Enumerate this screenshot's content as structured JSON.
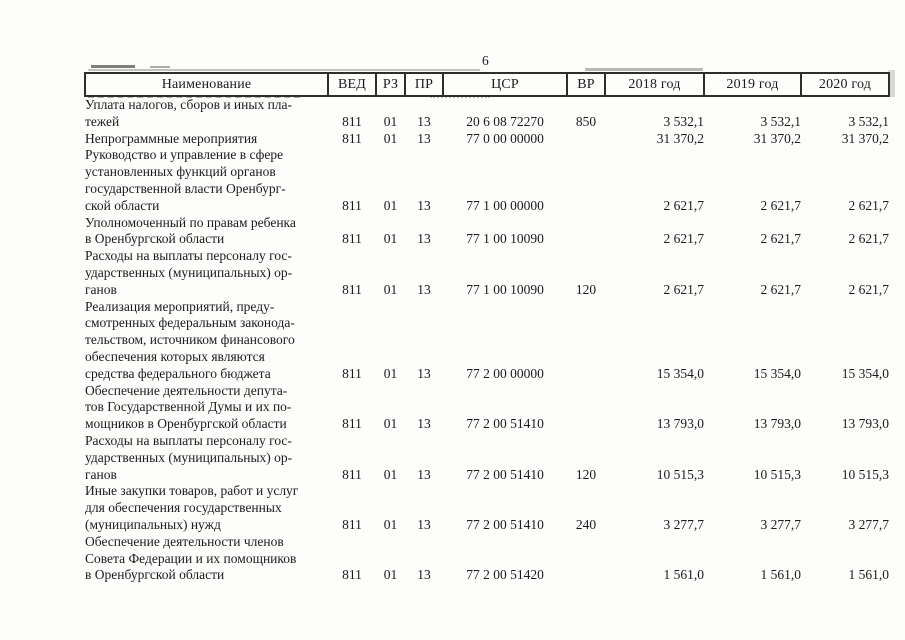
{
  "page": {
    "number": "6"
  },
  "table": {
    "headers": {
      "name": "Наименование",
      "ved": "ВЕД",
      "rz": "РЗ",
      "pr": "ПР",
      "csr": "ЦСР",
      "vr": "ВР",
      "y2018": "2018 год",
      "y2019": "2019 год",
      "y2020": "2020 год"
    },
    "rows": [
      {
        "name": "Уплата налогов, сборов и иных пла-\nтежей",
        "ved": "811",
        "rz": "01",
        "pr": "13",
        "csr": "20 6 08 72270",
        "vr": "850",
        "y2018": "3 532,1",
        "y2019": "3 532,1",
        "y2020": "3 532,1"
      },
      {
        "name": "Непрограммные мероприятия",
        "ved": "811",
        "rz": "01",
        "pr": "13",
        "csr": "77 0 00 00000",
        "vr": "",
        "y2018": "31 370,2",
        "y2019": "31 370,2",
        "y2020": "31 370,2"
      },
      {
        "name": "Руководство и управление в сфере\nустановленных функций органов\nгосударственной власти Оренбург-\nской области",
        "ved": "811",
        "rz": "01",
        "pr": "13",
        "csr": "77 1 00 00000",
        "vr": "",
        "y2018": "2 621,7",
        "y2019": "2 621,7",
        "y2020": "2 621,7"
      },
      {
        "name": "Уполномоченный по правам ребенка\nв Оренбургской области",
        "ved": "811",
        "rz": "01",
        "pr": "13",
        "csr": "77 1 00 10090",
        "vr": "",
        "y2018": "2 621,7",
        "y2019": "2 621,7",
        "y2020": "2 621,7"
      },
      {
        "name": "Расходы на выплаты персоналу гос-\nударственных (муниципальных) ор-\nганов",
        "ved": "811",
        "rz": "01",
        "pr": "13",
        "csr": "77 1 00 10090",
        "vr": "120",
        "y2018": "2 621,7",
        "y2019": "2 621,7",
        "y2020": "2 621,7"
      },
      {
        "name": "Реализация мероприятий, преду-\nсмотренных федеральным законода-\nтельством, источником финансового\nобеспечения которых являются\nсредства федерального бюджета",
        "ved": "811",
        "rz": "01",
        "pr": "13",
        "csr": "77 2 00 00000",
        "vr": "",
        "y2018": "15 354,0",
        "y2019": "15 354,0",
        "y2020": "15 354,0"
      },
      {
        "name": "Обеспечение деятельности депута-\nтов Государственной Думы и их по-\nмощников в Оренбургской области",
        "ved": "811",
        "rz": "01",
        "pr": "13",
        "csr": "77 2 00 51410",
        "vr": "",
        "y2018": "13 793,0",
        "y2019": "13 793,0",
        "y2020": "13 793,0"
      },
      {
        "name": "Расходы на выплаты персоналу гос-\nударственных (муниципальных) ор-\nганов",
        "ved": "811",
        "rz": "01",
        "pr": "13",
        "csr": "77 2 00 51410",
        "vr": "120",
        "y2018": "10 515,3",
        "y2019": "10 515,3",
        "y2020": "10 515,3"
      },
      {
        "name": "Иные закупки товаров, работ и услуг\nдля обеспечения государственных\n(муниципальных) нужд",
        "ved": "811",
        "rz": "01",
        "pr": "13",
        "csr": "77 2 00 51410",
        "vr": "240",
        "y2018": "3 277,7",
        "y2019": "3 277,7",
        "y2020": "3 277,7"
      },
      {
        "name": "Обеспечение деятельности членов\nСовета Федерации и их помощников\nв Оренбургской области",
        "ved": "811",
        "rz": "01",
        "pr": "13",
        "csr": "77 2 00 51420",
        "vr": "",
        "y2018": "1 561,0",
        "y2019": "1 561,0",
        "y2020": "1 561,0"
      }
    ]
  }
}
